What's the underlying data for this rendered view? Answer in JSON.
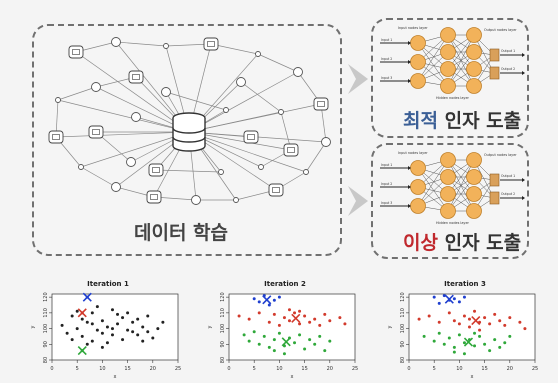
{
  "learning_box": {
    "caption": "데이터 학습"
  },
  "optimal_box": {
    "caption_highlight": "최적",
    "caption_rest": " 인자 도출",
    "highlight_color": "#3b5f96"
  },
  "anomaly_box": {
    "caption_highlight": "이상",
    "caption_rest": " 인자 도출",
    "highlight_color": "#c0282d"
  },
  "nn_labels": {
    "input_layer": "Input nodes layer",
    "hidden_layer": "Hidden nodes layer",
    "output_layer": "Output nodes layer",
    "input_1": "Input 1",
    "input_2": "Input 2",
    "input_3": "Input 3",
    "output_1": "Output 1",
    "output_2": "Output 2"
  },
  "iterations": [
    {
      "title": "Iteration 1"
    },
    {
      "title": "Iteration 2"
    },
    {
      "title": "Iteration 3"
    }
  ],
  "chart_data": [
    {
      "type": "scatter",
      "title": "Iteration 1",
      "xlabel": "x",
      "ylabel": "y",
      "xticks": [
        "0",
        "5",
        "10",
        "15",
        "20",
        "25"
      ],
      "yticks": [
        "80",
        "90",
        "100",
        "110",
        "120"
      ],
      "xlim": [
        0,
        25
      ],
      "ylim": [
        80,
        122
      ],
      "series": [
        {
          "color": "#222222",
          "points": [
            [
              2,
              102
            ],
            [
              3,
              97
            ],
            [
              4,
              108
            ],
            [
              5,
              100
            ],
            [
              6,
              95
            ],
            [
              7,
              104
            ],
            [
              8,
              110
            ],
            [
              8,
              92
            ],
            [
              9,
              99
            ],
            [
              10,
              105
            ],
            [
              10,
              88
            ],
            [
              11,
              101
            ],
            [
              12,
              96
            ],
            [
              12,
              112
            ],
            [
              13,
              103
            ],
            [
              14,
              93
            ],
            [
              14,
              107
            ],
            [
              15,
              99
            ],
            [
              16,
              104
            ],
            [
              17,
              96
            ],
            [
              18,
              101
            ],
            [
              19,
              108
            ],
            [
              20,
              94
            ],
            [
              21,
              100
            ],
            [
              9,
              114
            ],
            [
              7,
              90
            ],
            [
              11,
              91
            ],
            [
              13,
              109
            ],
            [
              16,
              98
            ],
            [
              6,
              106
            ],
            [
              4,
              93
            ],
            [
              15,
              110
            ],
            [
              18,
              92
            ],
            [
              22,
              104
            ],
            [
              12,
              100
            ],
            [
              10,
              97
            ],
            [
              8,
              103
            ],
            [
              17,
              106
            ],
            [
              19,
              98
            ],
            [
              5,
              111
            ]
          ]
        },
        {
          "color": "#1f3fcf",
          "points": [
            [
              7,
              120
            ]
          ]
        },
        {
          "color": "#d23a2c",
          "points": [
            [
              6,
              110
            ]
          ]
        },
        {
          "color": "#2fa83a",
          "points": [
            [
              6,
              86
            ]
          ]
        }
      ]
    },
    {
      "type": "scatter",
      "title": "Iteration 2",
      "xlabel": "x",
      "ylabel": "y",
      "xticks": [
        "0",
        "5",
        "10",
        "15",
        "20",
        "25"
      ],
      "yticks": [
        "80",
        "90",
        "100",
        "110",
        "120"
      ],
      "xlim": [
        0,
        25
      ],
      "ylim": [
        80,
        122
      ],
      "series": [
        {
          "color": "#1f3fcf",
          "points": [
            [
              5,
              119
            ],
            [
              7,
              121
            ],
            [
              9,
              118
            ],
            [
              10,
              120
            ],
            [
              6,
              117
            ],
            [
              8,
              115
            ]
          ]
        },
        {
          "color": "#d23a2c",
          "points": [
            [
              2,
              108
            ],
            [
              4,
              106
            ],
            [
              6,
              110
            ],
            [
              8,
              104
            ],
            [
              9,
              109
            ],
            [
              10,
              102
            ],
            [
              11,
              107
            ],
            [
              12,
              105
            ],
            [
              13,
              110
            ],
            [
              14,
              103
            ],
            [
              15,
              108
            ],
            [
              16,
              104
            ],
            [
              17,
              106
            ],
            [
              18,
              102
            ],
            [
              19,
              109
            ],
            [
              20,
              105
            ],
            [
              22,
              107
            ],
            [
              23,
              103
            ],
            [
              12,
              112
            ],
            [
              14,
              111
            ]
          ]
        },
        {
          "color": "#2fa83a",
          "points": [
            [
              3,
              96
            ],
            [
              4,
              92
            ],
            [
              5,
              98
            ],
            [
              6,
              90
            ],
            [
              7,
              95
            ],
            [
              8,
              88
            ],
            [
              9,
              93
            ],
            [
              10,
              97
            ],
            [
              11,
              89
            ],
            [
              12,
              94
            ],
            [
              13,
              91
            ],
            [
              14,
              96
            ],
            [
              15,
              87
            ],
            [
              16,
              93
            ],
            [
              17,
              90
            ],
            [
              18,
              95
            ],
            [
              19,
              86
            ],
            [
              20,
              92
            ],
            [
              11,
              84
            ],
            [
              9,
              86
            ]
          ]
        }
      ]
    },
    {
      "type": "scatter",
      "title": "Iteration 3",
      "xlabel": "x",
      "ylabel": "y",
      "xticks": [
        "0",
        "5",
        "10",
        "15",
        "20",
        "25"
      ],
      "yticks": [
        "80",
        "90",
        "100",
        "110",
        "120"
      ],
      "xlim": [
        0,
        25
      ],
      "ylim": [
        80,
        122
      ],
      "series": [
        {
          "color": "#1f3fcf",
          "points": [
            [
              5,
              120
            ],
            [
              7,
              121
            ],
            [
              8,
              118
            ],
            [
              9,
              119
            ],
            [
              6,
              116
            ],
            [
              10,
              117
            ],
            [
              11,
              120
            ]
          ]
        },
        {
          "color": "#d23a2c",
          "points": [
            [
              2,
              106
            ],
            [
              4,
              108
            ],
            [
              6,
              104
            ],
            [
              8,
              110
            ],
            [
              9,
              105
            ],
            [
              10,
              103
            ],
            [
              11,
              108
            ],
            [
              12,
              106
            ],
            [
              13,
              111
            ],
            [
              14,
              104
            ],
            [
              15,
              107
            ],
            [
              16,
              103
            ],
            [
              17,
              109
            ],
            [
              18,
              105
            ],
            [
              19,
              102
            ],
            [
              20,
              107
            ],
            [
              22,
              104
            ],
            [
              23,
              100
            ],
            [
              12,
              101
            ],
            [
              14,
              99
            ]
          ]
        },
        {
          "color": "#2fa83a",
          "points": [
            [
              3,
              95
            ],
            [
              5,
              92
            ],
            [
              6,
              97
            ],
            [
              7,
              90
            ],
            [
              8,
              94
            ],
            [
              9,
              88
            ],
            [
              10,
              96
            ],
            [
              11,
              91
            ],
            [
              12,
              93
            ],
            [
              13,
              89
            ],
            [
              14,
              95
            ],
            [
              15,
              90
            ],
            [
              16,
              86
            ],
            [
              17,
              93
            ],
            [
              18,
              88
            ],
            [
              19,
              91
            ],
            [
              20,
              95
            ],
            [
              11,
              84
            ],
            [
              9,
              85
            ],
            [
              13,
              97
            ]
          ]
        }
      ]
    }
  ]
}
